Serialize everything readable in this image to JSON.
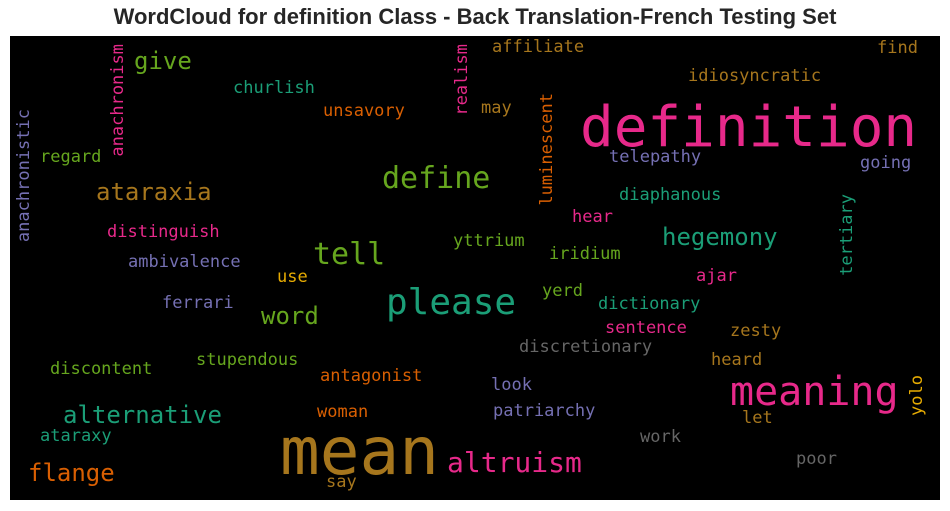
{
  "title": "WordCloud for definition Class - Back Translation-French Testing Set",
  "colors": {
    "background": "#000000",
    "dark_green": "#1b9e77",
    "orange": "#d95f02",
    "purple": "#7570b3",
    "pink": "#e7298a",
    "green": "#66a61e",
    "gold": "#e6ab02",
    "brown": "#a6761d",
    "gray": "#666666"
  },
  "words": [
    "mean",
    "definition",
    "meaning",
    "please",
    "define",
    "tell",
    "altruism",
    "ataraxia",
    "alternative",
    "hegemony",
    "flange",
    "word",
    "give",
    "anachronism",
    "anachronistic",
    "realism",
    "luminescent",
    "tertiary",
    "yolo",
    "affiliate",
    "find",
    "idiosyncratic",
    "churlish",
    "unsavory",
    "may",
    "regard",
    "telepathy",
    "going",
    "diaphanous",
    "distinguish",
    "hear",
    "yttrium",
    "iridium",
    "ambivalence",
    "use",
    "ajar",
    "ferrari",
    "yerd",
    "dictionary",
    "sentence",
    "zesty",
    "discretionary",
    "discontent",
    "stupendous",
    "heard",
    "antagonist",
    "look",
    "woman",
    "patriarchy",
    "let",
    "ataraxy",
    "work",
    "poor",
    "say"
  ]
}
